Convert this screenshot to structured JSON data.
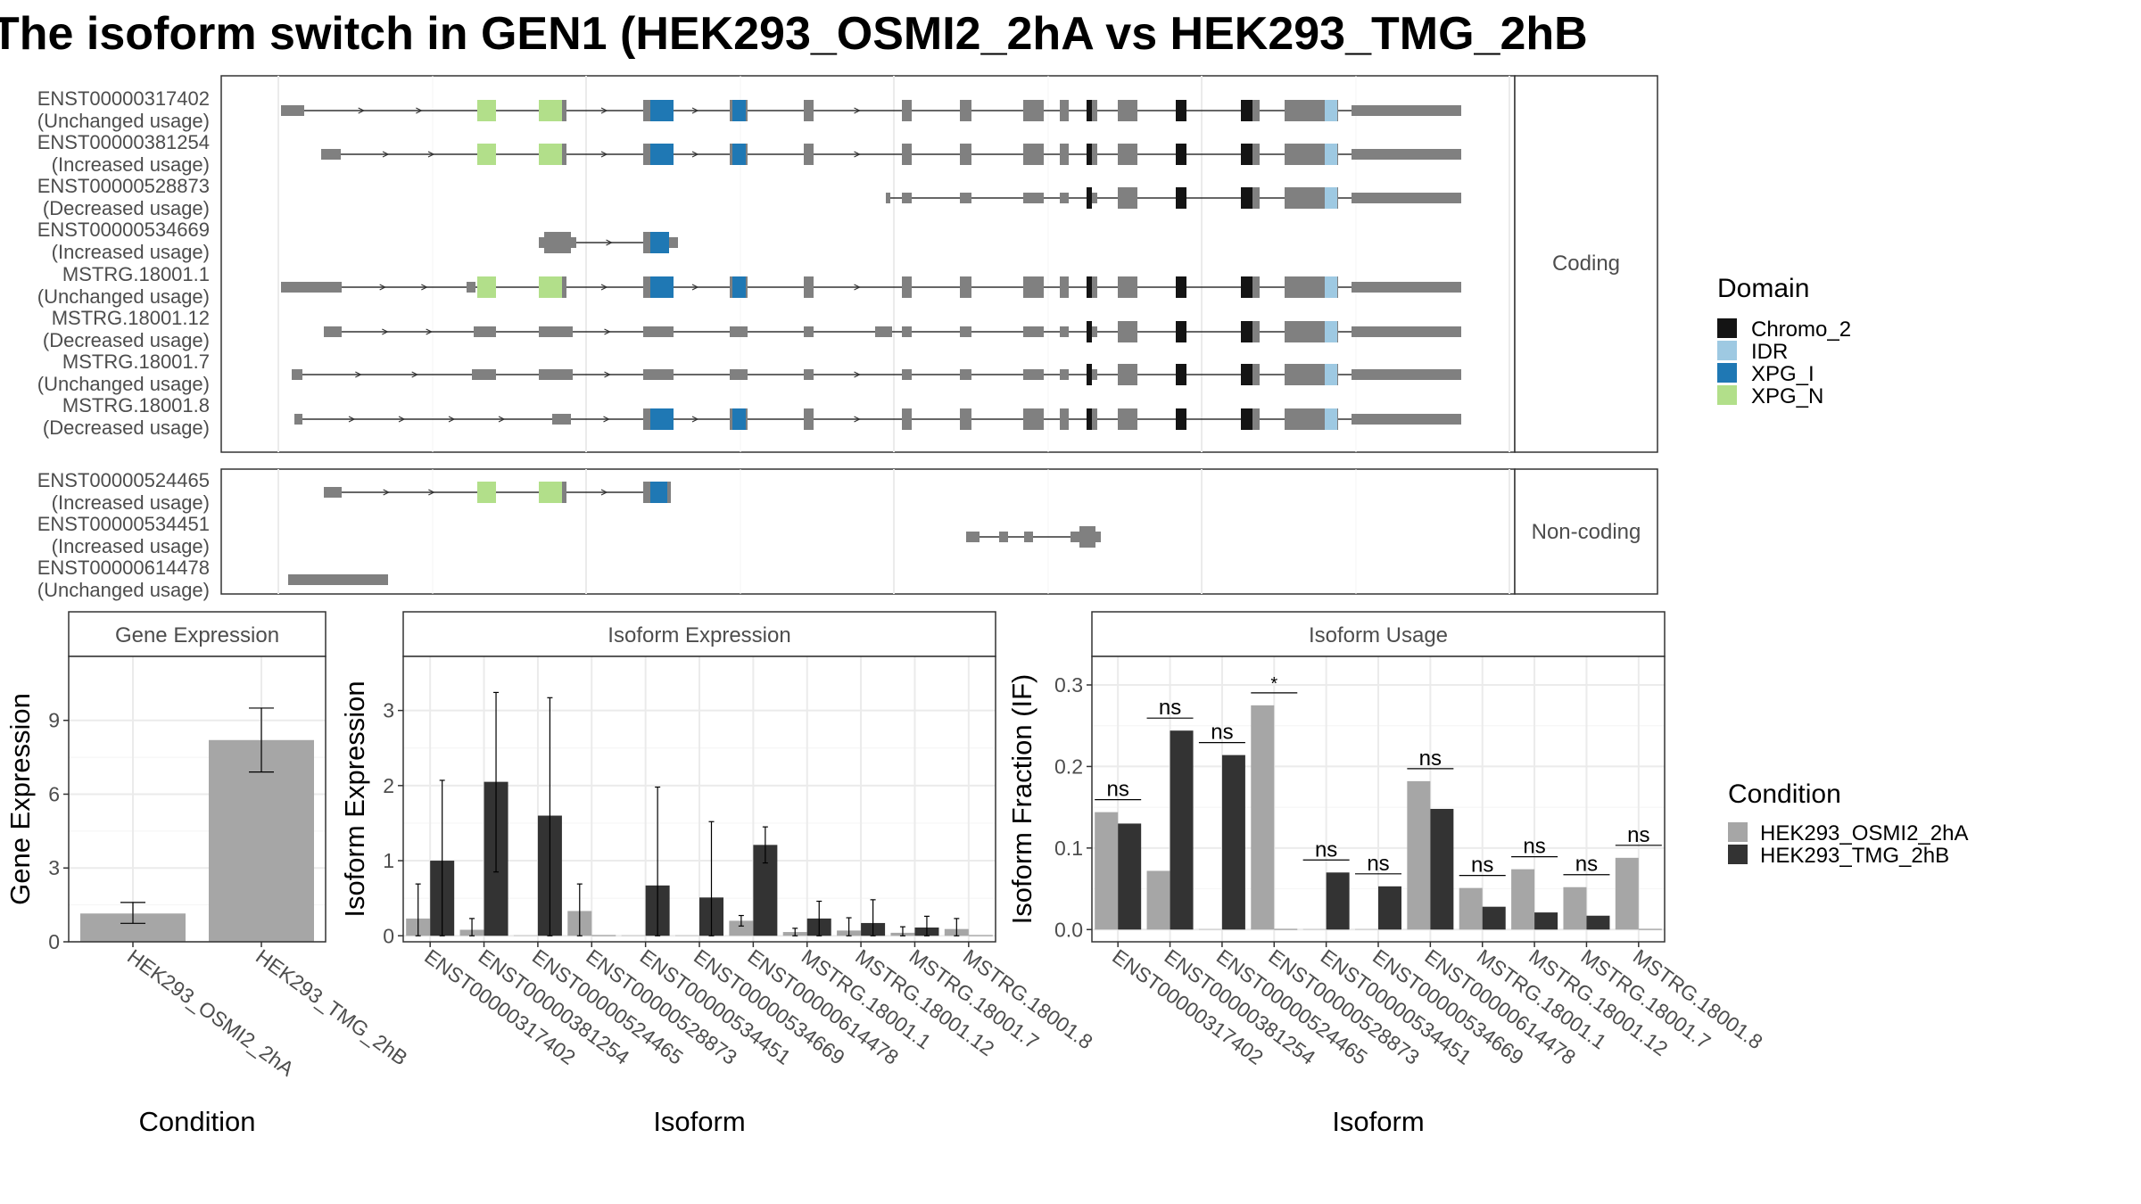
{
  "title": "The isoform switch in GEN1 (HEK293_OSMI2_2hA vs HEK293_TMG_2hB",
  "colors": {
    "exon": "#808080",
    "chromo2": "#141414",
    "idr": "#9ec9e2",
    "xpg_i": "#1f78b4",
    "xpg_n": "#b2df8a",
    "cond_a": "#a6a6a6",
    "cond_b": "#333333"
  },
  "structure": {
    "facets": [
      "Coding",
      "Non-coding"
    ],
    "coding": [
      {
        "id": "ENST00000317402",
        "usage": "(Unchanged usage)"
      },
      {
        "id": "ENST00000381254",
        "usage": "(Increased usage)"
      },
      {
        "id": "ENST00000528873",
        "usage": "(Decreased usage)"
      },
      {
        "id": "ENST00000534669",
        "usage": "(Increased usage)"
      },
      {
        "id": "MSTRG.18001.1",
        "usage": "(Unchanged usage)"
      },
      {
        "id": "MSTRG.18001.12",
        "usage": "(Decreased usage)"
      },
      {
        "id": "MSTRG.18001.7",
        "usage": "(Unchanged usage)"
      },
      {
        "id": "MSTRG.18001.8",
        "usage": "(Decreased usage)"
      }
    ],
    "noncoding": [
      {
        "id": "ENST00000524465",
        "usage": "(Increased usage)"
      },
      {
        "id": "ENST00000534451",
        "usage": "(Increased usage)"
      },
      {
        "id": "ENST00000614478",
        "usage": "(Unchanged usage)"
      }
    ],
    "legend": {
      "title": "Domain",
      "items": [
        {
          "label": "Chromo_2",
          "color": "#141414"
        },
        {
          "label": "IDR",
          "color": "#9ec9e2"
        },
        {
          "label": "XPG_I",
          "color": "#1f78b4"
        },
        {
          "label": "XPG_N",
          "color": "#b2df8a"
        }
      ]
    }
  },
  "chart_data": [
    {
      "type": "bar",
      "title": "Gene Expression",
      "xlabel": "Condition",
      "ylabel": "Gene Expression",
      "categories": [
        "HEK293_OSMI2_2hA",
        "HEK293_TMG_2hB"
      ],
      "values": [
        1.15,
        8.2
      ],
      "error_low": [
        0.75,
        6.9
      ],
      "error_high": [
        1.6,
        9.5
      ],
      "ylim": [
        0,
        11.6
      ],
      "yticks": [
        0,
        3,
        6,
        9
      ]
    },
    {
      "type": "bar",
      "title": "Isoform Expression",
      "xlabel": "Isoform",
      "ylabel": "Isoform Expression",
      "categories": [
        "ENST00000317402",
        "ENST00000381254",
        "ENST00000524465",
        "ENST00000528873",
        "ENST00000534451",
        "ENST00000534669",
        "ENST00000614478",
        "MSTRG.18001.1",
        "MSTRG.18001.12",
        "MSTRG.18001.7",
        "MSTRG.18001.8"
      ],
      "series": [
        {
          "name": "HEK293_OSMI2_2hA",
          "values": [
            0.23,
            0.08,
            0.0,
            0.33,
            0.0,
            0.0,
            0.2,
            0.05,
            0.07,
            0.04,
            0.09
          ],
          "error_low": [
            0.0,
            0.0,
            0.0,
            0.0,
            0.0,
            0.0,
            0.13,
            0.0,
            0.0,
            0.0,
            0.0
          ],
          "error_high": [
            0.69,
            0.23,
            0.0,
            0.69,
            0.0,
            0.0,
            0.27,
            0.1,
            0.24,
            0.12,
            0.23
          ]
        },
        {
          "name": "HEK293_TMG_2hB",
          "values": [
            1.0,
            2.05,
            1.6,
            0.0,
            0.67,
            0.51,
            1.21,
            0.23,
            0.17,
            0.11,
            0.0
          ],
          "error_low": [
            0.0,
            0.85,
            0.0,
            0.0,
            0.0,
            0.0,
            0.97,
            0.0,
            0.0,
            0.0,
            0.0
          ],
          "error_high": [
            2.07,
            3.24,
            3.17,
            0.0,
            1.98,
            1.52,
            1.45,
            0.46,
            0.48,
            0.26,
            0.0
          ]
        }
      ],
      "ylim": [
        -0.08,
        3.72
      ],
      "yticks": [
        0,
        1,
        2,
        3
      ]
    },
    {
      "type": "bar",
      "title": "Isoform Usage",
      "xlabel": "Isoform",
      "ylabel": "Isoform Fraction (IF)",
      "categories": [
        "ENST00000317402",
        "ENST00000381254",
        "ENST00000524465",
        "ENST00000528873",
        "ENST00000534451",
        "ENST00000534669",
        "ENST00000614478",
        "MSTRG.18001.1",
        "MSTRG.18001.12",
        "MSTRG.18001.7",
        "MSTRG.18001.8"
      ],
      "series": [
        {
          "name": "HEK293_OSMI2_2hA",
          "values": [
            0.144,
            0.072,
            0.0,
            0.275,
            0.0,
            0.0,
            0.182,
            0.051,
            0.074,
            0.052,
            0.088
          ]
        },
        {
          "name": "HEK293_TMG_2hB",
          "values": [
            0.13,
            0.244,
            0.214,
            0.0,
            0.07,
            0.053,
            0.148,
            0.028,
            0.021,
            0.017,
            0.0
          ]
        }
      ],
      "significance": [
        "ns",
        "ns",
        "ns",
        "*",
        "ns",
        "ns",
        "ns",
        "ns",
        "ns",
        "ns",
        "ns"
      ],
      "ylim": [
        -0.015,
        0.335
      ],
      "yticks": [
        0.0,
        0.1,
        0.2,
        0.3
      ],
      "ytick_labels": [
        "0.0",
        "0.1",
        "0.2",
        "0.3"
      ]
    }
  ],
  "condition_legend": {
    "title": "Condition",
    "items": [
      {
        "label": "HEK293_OSMI2_2hA",
        "color": "#a6a6a6"
      },
      {
        "label": "HEK293_TMG_2hB",
        "color": "#333333"
      }
    ]
  }
}
